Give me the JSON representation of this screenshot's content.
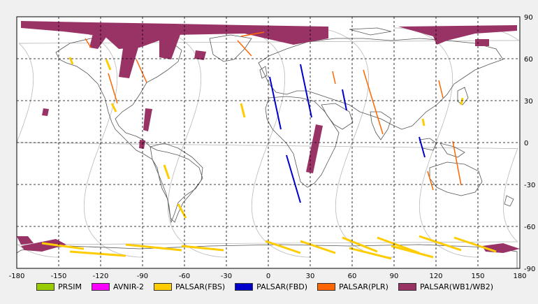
{
  "map": {
    "x_ticks": [
      "-180",
      "-150",
      "-120",
      "-90",
      "-60",
      "-30",
      "0",
      "30",
      "60",
      "90",
      "120",
      "150",
      "180"
    ],
    "y_ticks": [
      "90",
      "60",
      "30",
      "0",
      "-30",
      "-60",
      "-90"
    ],
    "lon_values": [
      -180,
      -150,
      -120,
      -90,
      -60,
      -30,
      0,
      30,
      60,
      90,
      120,
      150,
      180
    ],
    "lat_values": [
      90,
      60,
      30,
      0,
      -30,
      -60,
      -90
    ]
  },
  "legend": {
    "items": [
      {
        "label": "PRSIM",
        "color": "#99cc00"
      },
      {
        "label": "AVNIR-2",
        "color": "#ff00ff"
      },
      {
        "label": "PALSAR(FBS)",
        "color": "#ffcc00"
      },
      {
        "label": "PALSAR(FBD)",
        "color": "#0000cc"
      },
      {
        "label": "PALSAR(PLR)",
        "color": "#ff6600"
      },
      {
        "label": "PALSAR(WB1/WB2)",
        "color": "#993366"
      }
    ]
  },
  "colors": {
    "wb": "#993366",
    "fbs": "#ffcc00",
    "fbd": "#0000cc",
    "plr": "#ff6600",
    "orbit": "#bdbdbd",
    "coast": "#555555"
  }
}
